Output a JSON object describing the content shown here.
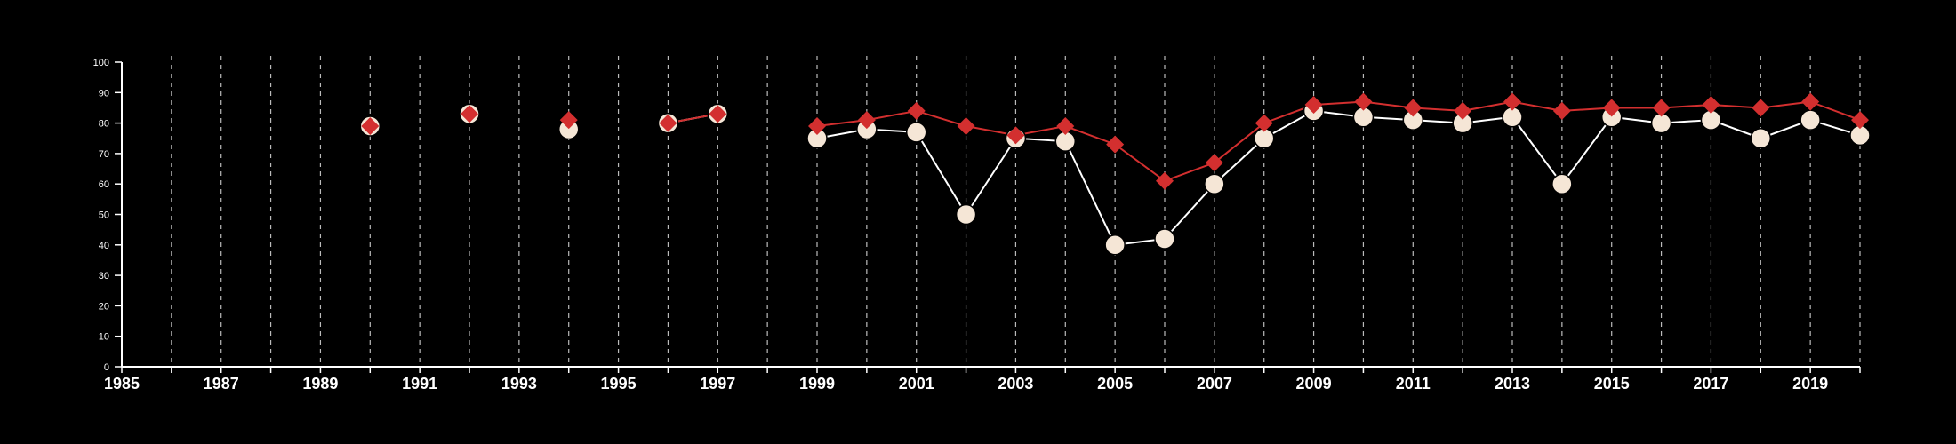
{
  "chart_data": {
    "type": "line",
    "title": "",
    "xlabel": "",
    "ylabel": "",
    "xlim": [
      1985,
      2020
    ],
    "ylim": [
      0,
      100
    ],
    "x_ticks": [
      1985,
      1987,
      1989,
      1991,
      1993,
      1995,
      1997,
      1999,
      2001,
      2003,
      2005,
      2007,
      2009,
      2011,
      2013,
      2015,
      2017,
      2019
    ],
    "y_ticks": [
      0,
      10,
      20,
      30,
      40,
      50,
      60,
      70,
      80,
      90,
      100
    ],
    "vertical_gridlines": "dashed, one per year",
    "legend": "none",
    "background_color": "#000000",
    "axis_color": "#ffffff",
    "series": [
      {
        "marker": "circle",
        "color": "#f5e6d6",
        "line_color": "#ffffff",
        "points": [
          {
            "x": 1990,
            "y": 79
          },
          {
            "x": 1992,
            "y": 83
          },
          {
            "x": 1994,
            "y": 78
          },
          {
            "x": 1996,
            "y": 80
          },
          {
            "x": 1997,
            "y": 83
          },
          {
            "x": 1999,
            "y": 75
          },
          {
            "x": 2000,
            "y": 78
          },
          {
            "x": 2001,
            "y": 77
          },
          {
            "x": 2002,
            "y": 50
          },
          {
            "x": 2003,
            "y": 75
          },
          {
            "x": 2004,
            "y": 74
          },
          {
            "x": 2005,
            "y": 40
          },
          {
            "x": 2006,
            "y": 42
          },
          {
            "x": 2007,
            "y": 60
          },
          {
            "x": 2008,
            "y": 75
          },
          {
            "x": 2009,
            "y": 84
          },
          {
            "x": 2010,
            "y": 82
          },
          {
            "x": 2011,
            "y": 81
          },
          {
            "x": 2012,
            "y": 80
          },
          {
            "x": 2013,
            "y": 82
          },
          {
            "x": 2014,
            "y": 60
          },
          {
            "x": 2015,
            "y": 82
          },
          {
            "x": 2016,
            "y": 80
          },
          {
            "x": 2017,
            "y": 81
          },
          {
            "x": 2018,
            "y": 75
          },
          {
            "x": 2019,
            "y": 81
          },
          {
            "x": 2020,
            "y": 76
          }
        ]
      },
      {
        "marker": "diamond",
        "color": "#d32f2f",
        "line_color": "#d32f2f",
        "points": [
          {
            "x": 1990,
            "y": 79
          },
          {
            "x": 1992,
            "y": 83
          },
          {
            "x": 1994,
            "y": 81
          },
          {
            "x": 1996,
            "y": 80
          },
          {
            "x": 1997,
            "y": 83
          },
          {
            "x": 1999,
            "y": 79
          },
          {
            "x": 2000,
            "y": 81
          },
          {
            "x": 2001,
            "y": 84
          },
          {
            "x": 2002,
            "y": 79
          },
          {
            "x": 2003,
            "y": 76
          },
          {
            "x": 2004,
            "y": 79
          },
          {
            "x": 2005,
            "y": 73
          },
          {
            "x": 2006,
            "y": 61
          },
          {
            "x": 2007,
            "y": 67
          },
          {
            "x": 2008,
            "y": 80
          },
          {
            "x": 2009,
            "y": 86
          },
          {
            "x": 2010,
            "y": 87
          },
          {
            "x": 2011,
            "y": 85
          },
          {
            "x": 2012,
            "y": 84
          },
          {
            "x": 2013,
            "y": 87
          },
          {
            "x": 2014,
            "y": 84
          },
          {
            "x": 2015,
            "y": 85
          },
          {
            "x": 2016,
            "y": 85
          },
          {
            "x": 2017,
            "y": 86
          },
          {
            "x": 2018,
            "y": 85
          },
          {
            "x": 2019,
            "y": 87
          },
          {
            "x": 2020,
            "y": 81
          }
        ]
      }
    ]
  }
}
